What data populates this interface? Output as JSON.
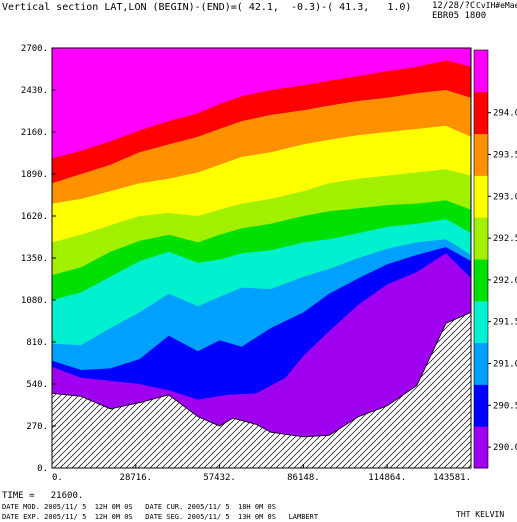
{
  "header": {
    "title": "Vertical section LAT,LON (BEGIN)-(END)=( 42.1,  -0.3)-( 41.3,   1.0)",
    "date_top": "12/28/?C",
    "code_top": "CvIH#eMae",
    "run": "EBR05 1800"
  },
  "footer": {
    "time": "TIME =   21600.",
    "line1": "DATE MOD. 2005/11/ 5  12H 0M 0S   DATE CUR. 2005/11/ 5  18H 0M 0S",
    "line2": "DATE EXP. 2005/11/ 5  12H 0M 0S   DATE SEG. 2005/11/ 5  13H 0M 0S   LAMBERT",
    "field": "THT KELVIN"
  },
  "chart_data": {
    "type": "heatmap",
    "title": "Vertical section LAT,LON (BEGIN)-(END)=( 42.1,  -0.3)-( 41.3,   1.0)",
    "x_ticks": [
      "0.",
      "28716.",
      "57432.",
      "86148.",
      "114864.",
      "143581."
    ],
    "y_ticks": [
      "0.",
      "270.",
      "540.",
      "810.",
      "1080.",
      "1350.",
      "1620.",
      "1890.",
      "2160.",
      "2430.",
      "2700."
    ],
    "xlim": [
      0,
      143581
    ],
    "ylim": [
      0,
      2700
    ],
    "colorbar_labels": [
      "290.0",
      "290.5",
      "291.0",
      "291.5",
      "292.0",
      "292.5",
      "293.0",
      "293.5",
      "294.0"
    ],
    "levels": [
      {
        "min": 289.75,
        "max": 290.25,
        "color": "#a000f0"
      },
      {
        "min": 290.25,
        "max": 290.75,
        "color": "#0000ff"
      },
      {
        "min": 290.75,
        "max": 291.25,
        "color": "#00a0ff"
      },
      {
        "min": 291.25,
        "max": 291.75,
        "color": "#00f0d0"
      },
      {
        "min": 291.75,
        "max": 292.25,
        "color": "#00e000"
      },
      {
        "min": 292.25,
        "max": 292.75,
        "color": "#a0f000"
      },
      {
        "min": 292.75,
        "max": 293.25,
        "color": "#ffff00"
      },
      {
        "min": 293.25,
        "max": 293.75,
        "color": "#ff9000"
      },
      {
        "min": 293.75,
        "max": 294.25,
        "color": "#ff0000"
      },
      {
        "min": 294.25,
        "max": 294.75,
        "color": "#ff00ff"
      }
    ],
    "terrain": {
      "x": [
        0,
        10000,
        20000,
        30000,
        40000,
        50000,
        57432,
        62000,
        70000,
        75000,
        86148,
        95000,
        105000,
        114864,
        125000,
        135000,
        143581
      ],
      "y": [
        480,
        460,
        380,
        420,
        470,
        330,
        270,
        320,
        280,
        230,
        200,
        210,
        330,
        400,
        530,
        930,
        1000
      ]
    },
    "boundaries": [
      {
        "x": [
          0,
          10000,
          20000,
          30000,
          40000,
          50000,
          60000,
          70000,
          80000,
          86148,
          95000,
          105000,
          114864,
          125000,
          135000,
          143581
        ],
        "y": [
          650,
          580,
          560,
          540,
          500,
          440,
          470,
          480,
          580,
          720,
          880,
          1050,
          1180,
          1260,
          1380,
          1220
        ]
      },
      {
        "x": [
          0,
          10000,
          20000,
          30000,
          40000,
          50000,
          57432,
          65000,
          75000,
          86148,
          95000,
          105000,
          114864,
          125000,
          135000,
          143581
        ],
        "y": [
          690,
          630,
          640,
          700,
          850,
          750,
          820,
          780,
          900,
          1000,
          1120,
          1220,
          1310,
          1370,
          1420,
          1330
        ]
      },
      {
        "x": [
          0,
          10000,
          20000,
          30000,
          40000,
          50000,
          57432,
          65000,
          75000,
          86148,
          95000,
          105000,
          114864,
          125000,
          135000,
          143581
        ],
        "y": [
          800,
          790,
          900,
          1000,
          1120,
          1040,
          1100,
          1160,
          1150,
          1230,
          1280,
          1350,
          1410,
          1450,
          1470,
          1370
        ]
      },
      {
        "x": [
          0,
          10000,
          20000,
          30000,
          40000,
          50000,
          57432,
          65000,
          75000,
          86148,
          95000,
          105000,
          114864,
          125000,
          135000,
          143581
        ],
        "y": [
          1080,
          1130,
          1230,
          1330,
          1390,
          1320,
          1340,
          1380,
          1400,
          1450,
          1470,
          1510,
          1550,
          1570,
          1600,
          1510
        ]
      },
      {
        "x": [
          0,
          10000,
          20000,
          30000,
          40000,
          50000,
          57432,
          65000,
          75000,
          86148,
          95000,
          105000,
          114864,
          125000,
          135000,
          143581
        ],
        "y": [
          1240,
          1290,
          1390,
          1460,
          1500,
          1450,
          1500,
          1540,
          1570,
          1620,
          1650,
          1670,
          1690,
          1700,
          1720,
          1660
        ]
      },
      {
        "x": [
          0,
          10000,
          20000,
          30000,
          40000,
          50000,
          57432,
          65000,
          75000,
          86148,
          95000,
          105000,
          114864,
          125000,
          135000,
          143581
        ],
        "y": [
          1450,
          1500,
          1560,
          1620,
          1640,
          1620,
          1660,
          1700,
          1730,
          1780,
          1830,
          1860,
          1880,
          1900,
          1920,
          1880
        ]
      },
      {
        "x": [
          0,
          10000,
          20000,
          30000,
          40000,
          50000,
          57432,
          65000,
          75000,
          86148,
          95000,
          105000,
          114864,
          125000,
          135000,
          143581
        ],
        "y": [
          1700,
          1730,
          1780,
          1830,
          1860,
          1900,
          1950,
          2000,
          2030,
          2080,
          2110,
          2140,
          2160,
          2180,
          2200,
          2130
        ]
      },
      {
        "x": [
          0,
          10000,
          20000,
          30000,
          40000,
          50000,
          57432,
          65000,
          75000,
          86148,
          95000,
          105000,
          114864,
          125000,
          135000,
          143581
        ],
        "y": [
          1830,
          1890,
          1950,
          2030,
          2080,
          2130,
          2180,
          2230,
          2270,
          2300,
          2330,
          2360,
          2380,
          2410,
          2430,
          2380
        ]
      },
      {
        "x": [
          0,
          10000,
          20000,
          30000,
          40000,
          50000,
          57432,
          65000,
          75000,
          86148,
          95000,
          105000,
          114864,
          125000,
          135000,
          143581
        ],
        "y": [
          1990,
          2040,
          2100,
          2170,
          2230,
          2280,
          2340,
          2390,
          2430,
          2460,
          2490,
          2520,
          2550,
          2580,
          2620,
          2580
        ]
      }
    ]
  }
}
